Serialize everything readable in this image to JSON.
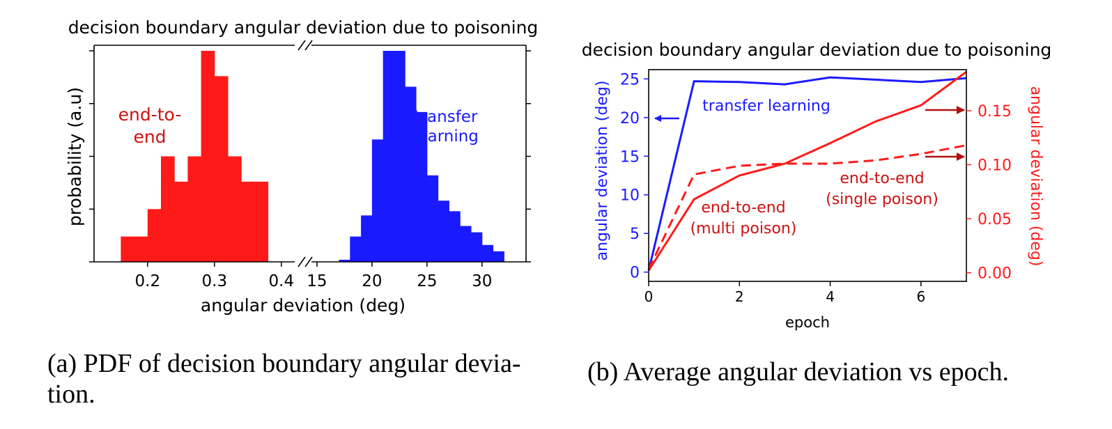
{
  "chart_data": [
    {
      "type": "bar",
      "title": "decision boundary angular deviation due to poisoning",
      "xlabel": "angular deviation (deg)",
      "ylabel": "probability (a.u)",
      "x_axis_broken": true,
      "left_segment": {
        "xlim": [
          0.12,
          0.42
        ],
        "ticks": [
          0.2,
          0.3,
          0.4
        ],
        "tick_labels": [
          "0.2",
          "0.3",
          "0.4"
        ]
      },
      "right_segment": {
        "xlim": [
          14.5,
          34
        ],
        "ticks": [
          15,
          20,
          25,
          30
        ],
        "tick_labels": [
          "15",
          "20",
          "25",
          "30"
        ]
      },
      "ylim": [
        0,
        1
      ],
      "series": [
        {
          "name": "end-to-end",
          "label_lines": [
            "end-to-",
            "end"
          ],
          "color": "#ff1a1a",
          "segment": "left",
          "bin_edges": [
            0.16,
            0.18,
            0.2,
            0.22,
            0.24,
            0.26,
            0.28,
            0.3,
            0.32,
            0.34,
            0.36,
            0.38
          ],
          "values": [
            0.12,
            0.12,
            0.25,
            0.5,
            0.38,
            0.5,
            1.0,
            0.88,
            0.5,
            0.38,
            0.38
          ]
        },
        {
          "name": "transfer learning",
          "label_lines": [
            "transfer",
            "learning"
          ],
          "color": "#1a1aff",
          "segment": "right",
          "bin_edges": [
            17.0,
            18.0,
            19.0,
            20.0,
            21.0,
            22.0,
            23.0,
            24.0,
            25.0,
            26.0,
            27.0,
            28.0,
            29.0,
            30.0,
            31.0,
            32.0
          ],
          "values": [
            0.01,
            0.12,
            0.22,
            0.58,
            1.0,
            1.0,
            0.83,
            0.71,
            0.41,
            0.29,
            0.24,
            0.17,
            0.14,
            0.08,
            0.05,
            0.02
          ]
        }
      ]
    },
    {
      "type": "line",
      "title": "decision boundary angular deviation due to poisoning",
      "xlabel": "epoch",
      "ylabel_left": "angular deviation (deg)",
      "ylabel_right": "angular deviation (deg)",
      "xlim": [
        0,
        7
      ],
      "xticks": [
        0,
        2,
        4,
        6
      ],
      "ylim_left": [
        -1.2,
        26.2
      ],
      "yticks_left": [
        0,
        5,
        10,
        15,
        20,
        25
      ],
      "ylim_right": [
        -0.008,
        0.188
      ],
      "yticks_right": [
        0.0,
        0.05,
        0.1,
        0.15
      ],
      "ytick_labels_right": [
        "0.00",
        "0.05",
        "0.10",
        "0.15"
      ],
      "series": [
        {
          "name": "transfer learning",
          "axis": "left",
          "color": "#1a1aff",
          "style": "solid",
          "x": [
            0,
            1,
            2,
            3,
            4,
            5,
            6,
            7
          ],
          "y": [
            0.2,
            24.7,
            24.6,
            24.3,
            25.2,
            24.9,
            24.6,
            25.1
          ]
        },
        {
          "name": "end-to-end (multi poison)",
          "label_lines": [
            "end-to-end",
            "(multi poison)"
          ],
          "axis": "right",
          "color": "#ff1a1a",
          "style": "solid",
          "x": [
            0,
            1,
            2,
            3,
            4,
            5,
            6,
            7
          ],
          "y": [
            0.002,
            0.068,
            0.09,
            0.101,
            0.12,
            0.14,
            0.155,
            0.186
          ]
        },
        {
          "name": "end-to-end (single poison)",
          "label_lines": [
            "end-to-end",
            "(single poison)"
          ],
          "axis": "right",
          "color": "#ff1a1a",
          "style": "dashed",
          "x": [
            0,
            1,
            2,
            3,
            4,
            5,
            6,
            7
          ],
          "y": [
            0.003,
            0.091,
            0.099,
            0.101,
            0.101,
            0.104,
            0.11,
            0.118
          ]
        }
      ]
    }
  ],
  "captions": {
    "a_line1": "(a) PDF of decision boundary angular devia-",
    "a_line2": "tion.",
    "b": "(b) Average angular deviation vs epoch."
  }
}
